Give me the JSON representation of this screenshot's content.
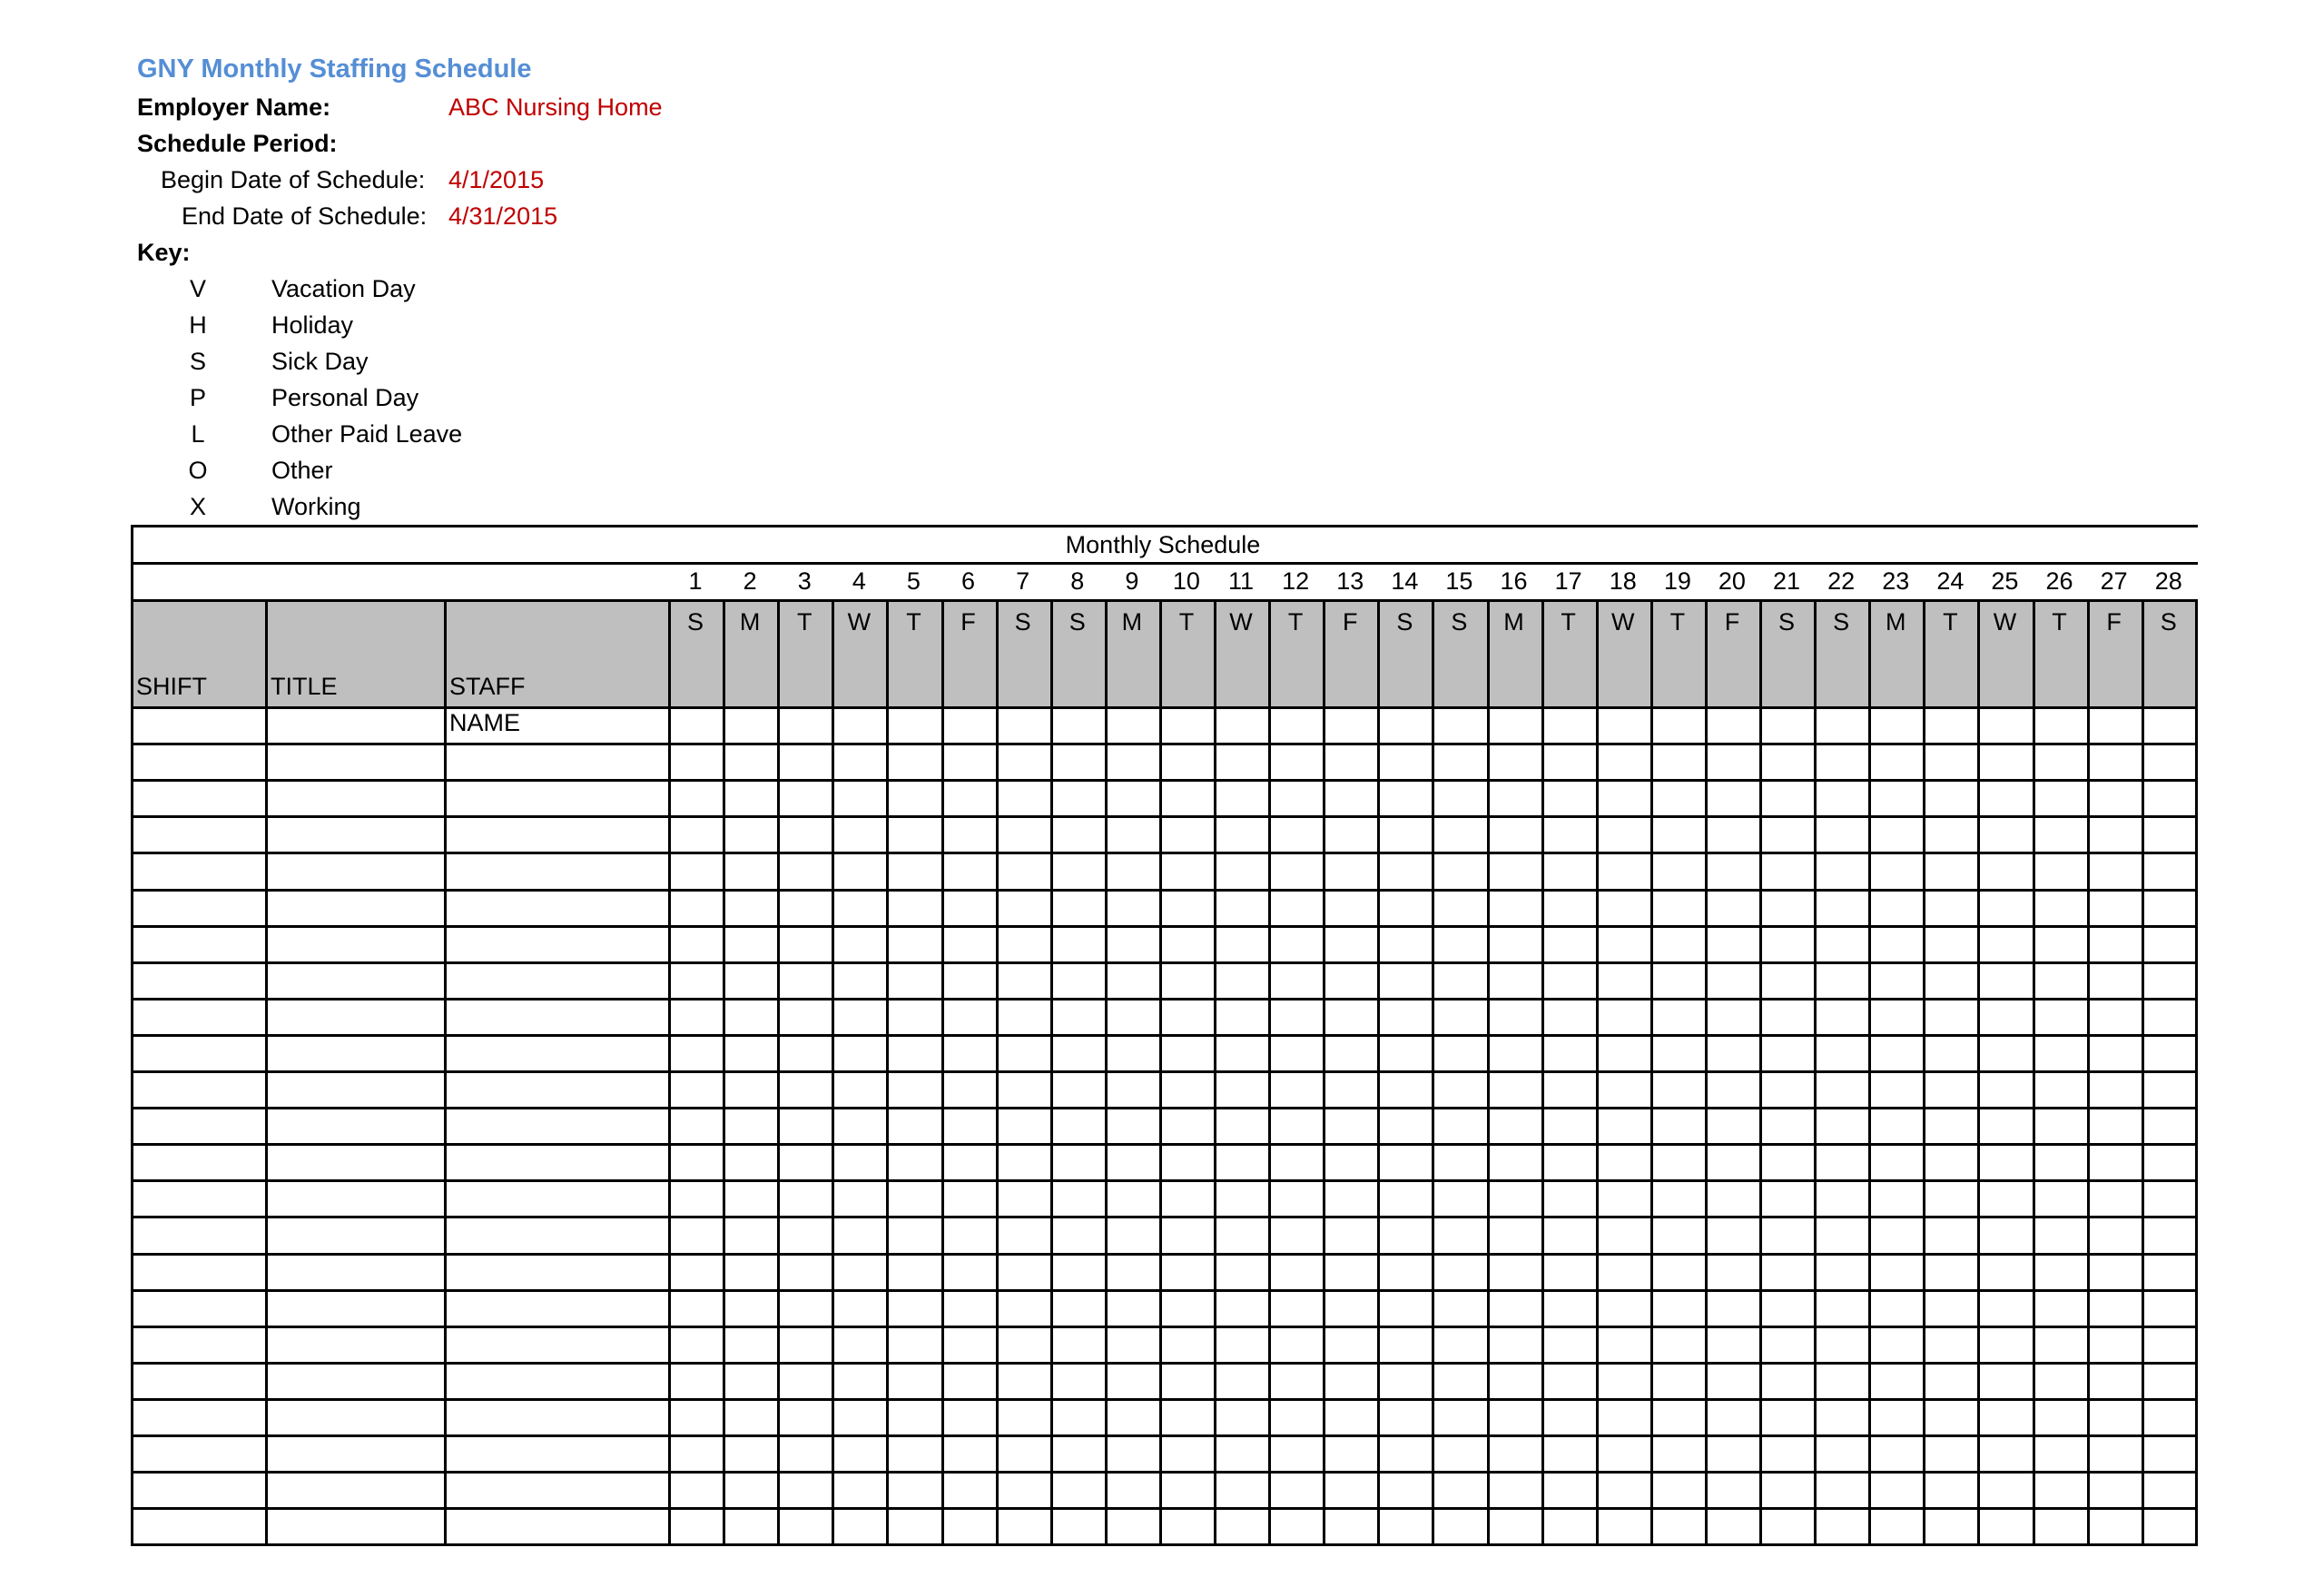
{
  "header": {
    "title": "GNY Monthly Staffing Schedule",
    "employer_label": "Employer Name:",
    "employer_value": "ABC Nursing Home",
    "period_label": "Schedule Period:",
    "begin_label": "Begin Date of Schedule:",
    "begin_value": "4/1/2015",
    "end_label": "End Date of Schedule:",
    "end_value": "4/31/2015",
    "key_label": "Key:"
  },
  "key": [
    {
      "code": "V",
      "meaning": "Vacation Day"
    },
    {
      "code": "H",
      "meaning": "Holiday"
    },
    {
      "code": "S",
      "meaning": "Sick Day"
    },
    {
      "code": "P",
      "meaning": "Personal Day"
    },
    {
      "code": "L",
      "meaning": "Other Paid Leave"
    },
    {
      "code": "O",
      "meaning": "Other"
    },
    {
      "code": "X",
      "meaning": "Working"
    }
  ],
  "table": {
    "caption": "Monthly Schedule",
    "columns": [
      "SHIFT",
      "TITLE",
      "STAFF NAME"
    ],
    "days": [
      "1",
      "2",
      "3",
      "4",
      "5",
      "6",
      "7",
      "8",
      "9",
      "10",
      "11",
      "12",
      "13",
      "14",
      "15",
      "16",
      "17",
      "18",
      "19",
      "20",
      "21",
      "22",
      "23",
      "24",
      "25",
      "26",
      "27",
      "28"
    ],
    "weekdays": [
      "S",
      "M",
      "T",
      "W",
      "T",
      "F",
      "S",
      "S",
      "M",
      "T",
      "W",
      "T",
      "F",
      "S",
      "S",
      "M",
      "T",
      "W",
      "T",
      "F",
      "S",
      "S",
      "M",
      "T",
      "W",
      "T",
      "F",
      "S"
    ],
    "row_count": 23,
    "header_fill": "#bfbfbf"
  }
}
